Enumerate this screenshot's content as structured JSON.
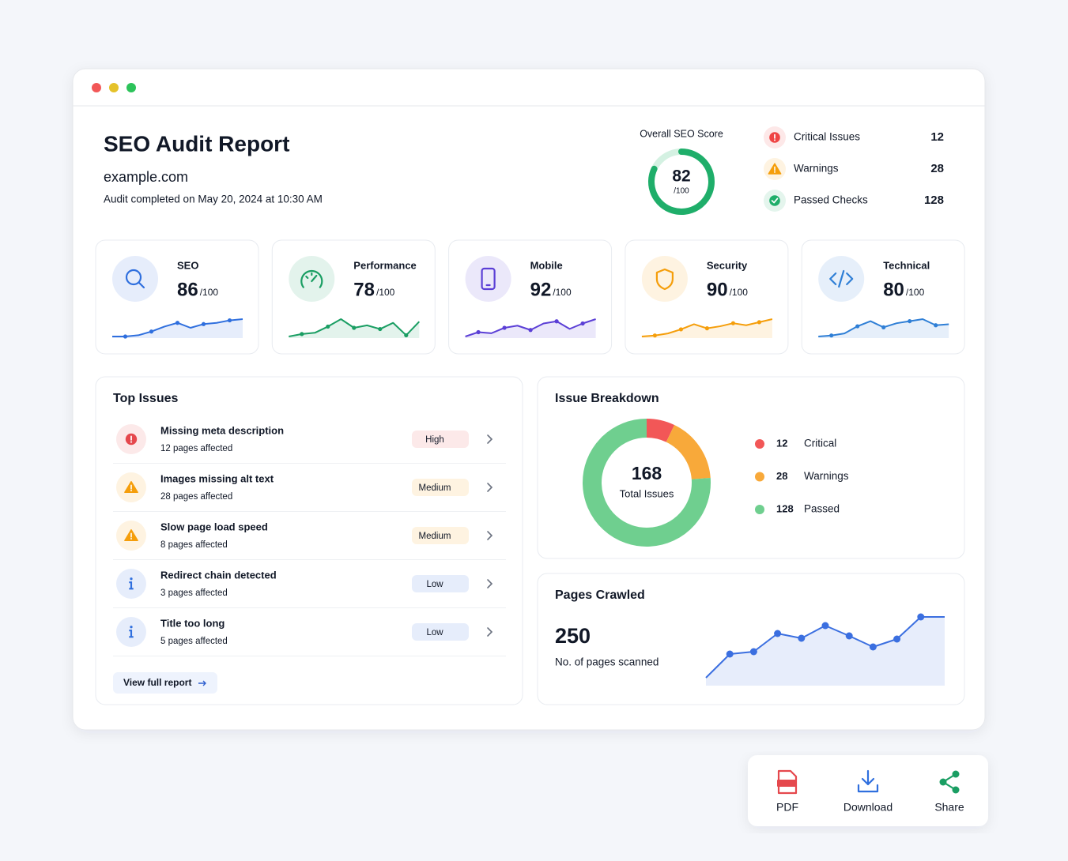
{
  "header": {
    "title": "SEO Audit Report",
    "domain": "example.com",
    "completed": "Audit completed on May 20, 2024 at 10:30 AM"
  },
  "overall": {
    "label": "Overall SEO Score",
    "score": 82,
    "scale": {
      "value": 100,
      "label": "/100"
    },
    "color": "#1fae6a"
  },
  "summary": [
    {
      "label": "Critical Issues",
      "value": 12,
      "color": "#ef4444"
    },
    {
      "label": "Warnings",
      "value": 28,
      "color": "#f59e0b"
    },
    {
      "label": "Passed Checks",
      "value": 128,
      "color": "#1fae6a"
    }
  ],
  "categories": [
    {
      "name": "SEO",
      "score": 86,
      "scale": {
        "value": 100,
        "label": "/100"
      },
      "color": "#2f6fde",
      "trend": [
        2,
        2,
        3,
        6,
        10,
        13,
        9,
        12,
        13,
        15,
        16
      ]
    },
    {
      "name": "Performance",
      "score": 78,
      "scale": {
        "value": 100,
        "label": "/100"
      },
      "color": "#1a9e63",
      "trend": [
        2,
        4,
        5,
        10,
        16,
        9,
        11,
        8,
        13,
        3,
        14
      ]
    },
    {
      "name": "Mobile",
      "score": 92,
      "scale": {
        "value": 100,
        "label": "/100"
      },
      "color": "#5b3fd6",
      "trend": [
        2,
        6,
        5,
        10,
        12,
        8,
        14,
        16,
        9,
        14,
        18
      ]
    },
    {
      "name": "Security",
      "score": 90,
      "scale": {
        "value": 100,
        "label": "/100"
      },
      "color": "#f59e0b",
      "trend": [
        2,
        3,
        5,
        9,
        14,
        10,
        12,
        15,
        13,
        16,
        19
      ]
    },
    {
      "name": "Technical",
      "score": 80,
      "scale": {
        "value": 100,
        "label": "/100"
      },
      "color": "#2f7fd6",
      "trend": [
        3,
        4,
        6,
        13,
        18,
        12,
        16,
        18,
        20,
        14,
        15
      ]
    }
  ],
  "top_issues": {
    "title": "Top Issues",
    "link": "View full report",
    "items": [
      {
        "title": "Missing meta description",
        "detail": "12 pages affected",
        "severity": "High",
        "color": "#e5484d"
      },
      {
        "title": "Images missing alt text",
        "detail": "28 pages affected",
        "severity": "Medium",
        "color": "#f59e0b"
      },
      {
        "title": "Slow page load speed",
        "detail": "8 pages affected",
        "severity": "Medium",
        "color": "#f59e0b"
      },
      {
        "title": "Redirect chain detected",
        "detail": "3 pages affected",
        "severity": "Low",
        "color": "#2f6fde"
      },
      {
        "title": "Title too long",
        "detail": "5 pages affected",
        "severity": "Low",
        "color": "#2f6fde"
      }
    ]
  },
  "breakdown": {
    "title": "Issue Breakdown",
    "total": 168,
    "total_label": "Total Issues",
    "items": [
      {
        "value": 12,
        "label": "Critical",
        "color": "#f25757"
      },
      {
        "value": 28,
        "label": "Warnings",
        "color": "#f8a93a"
      },
      {
        "value": 128,
        "label": "Passed",
        "color": "#6fcf8f"
      }
    ]
  },
  "pages_crawled": {
    "title": "Pages Crawled",
    "value": 250,
    "label": "No. of pages scanned",
    "color": "#3b6fe0",
    "trend": [
      0,
      30,
      33,
      56,
      50,
      66,
      53,
      39,
      49,
      77,
      77
    ]
  },
  "actions": [
    {
      "label": "PDF",
      "color": "#e5484d"
    },
    {
      "label": "Download",
      "color": "#2f6fde"
    },
    {
      "label": "Share",
      "color": "#1a9e63"
    }
  ]
}
